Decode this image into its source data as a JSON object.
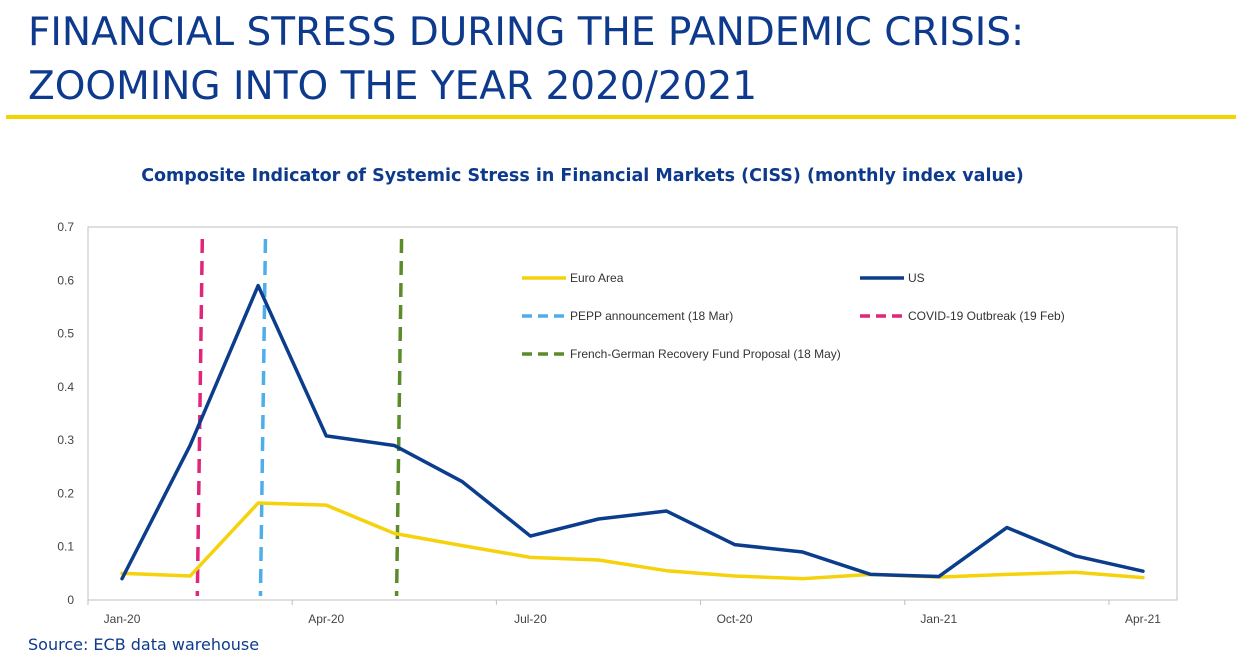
{
  "page": {
    "title": "FINANCIAL STRESS DURING THE PANDEMIC CRISIS: ZOOMING INTO THE YEAR 2020/2021",
    "source": "Source: ECB data warehouse",
    "accent_color": "#f2d400",
    "title_color": "#0d3a8c"
  },
  "chart_data": {
    "type": "line",
    "title": "Composite Indicator of Systemic Stress in Financial Markets (CISS) (monthly index value)",
    "xlabel": "",
    "ylabel": "",
    "ylim": [
      0,
      0.7
    ],
    "yticks": [
      "0",
      "0.1",
      "0.2",
      "0.3",
      "0.4",
      "0.5",
      "0.6",
      "0.7"
    ],
    "x": [
      "2020-01",
      "2020-02",
      "2020-03",
      "2020-04",
      "2020-05",
      "2020-06",
      "2020-07",
      "2020-08",
      "2020-09",
      "2020-10",
      "2020-11",
      "2020-12",
      "2021-01",
      "2021-02",
      "2021-03",
      "2021-04"
    ],
    "xtick_labels": [
      "Jan-20",
      "Apr-20",
      "Jul-20",
      "Oct-20",
      "Jan-21",
      "Apr-21"
    ],
    "grid": false,
    "legend_position": "top-right",
    "series": [
      {
        "name": "Euro Area",
        "color": "#f5d20c",
        "values": [
          0.05,
          0.045,
          0.182,
          0.178,
          0.125,
          0.102,
          0.08,
          0.075,
          0.055,
          0.045,
          0.04,
          0.048,
          0.043,
          0.048,
          0.052,
          0.042
        ]
      },
      {
        "name": "US",
        "color": "#0b3d8c",
        "values": [
          0.04,
          0.29,
          0.59,
          0.308,
          0.29,
          0.222,
          0.12,
          0.152,
          0.167,
          0.104,
          0.09,
          0.048,
          0.044,
          0.136,
          0.083,
          0.054
        ]
      }
    ],
    "events": [
      {
        "name": "PEPP announcement (18 Mar)",
        "date": "2020-03-18",
        "color": "#4daeea"
      },
      {
        "name": "COVID-19 Outbreak (19 Feb)",
        "date": "2020-02-19",
        "color": "#e0257a"
      },
      {
        "name": "French-German Recovery Fund Proposal (18 May)",
        "date": "2020-05-18",
        "color": "#5c8c2a"
      }
    ]
  }
}
